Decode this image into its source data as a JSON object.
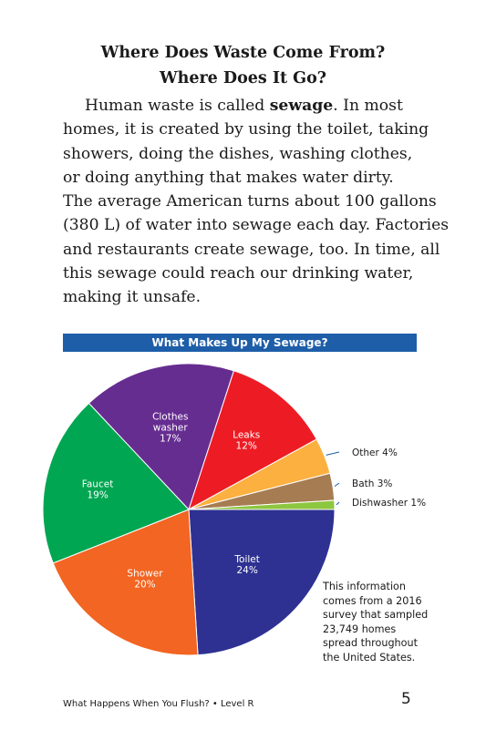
{
  "heading": {
    "line1": "Where Does Waste Come From?",
    "line2": "Where Does It Go?"
  },
  "body": {
    "l1a": "Human waste is called ",
    "l1b": "sewage",
    "l1c": ". In most",
    "l2": "homes, it is created by using the toilet, taking",
    "l3": "showers, doing the dishes, washing clothes,",
    "l4": "or doing anything that makes water dirty.",
    "l5": "The average American turns about 100 gallons",
    "l6": "(380 L) of water into sewage each day. Factories",
    "l7": "and restaurants create sewage, too. In time, all",
    "l8": "this sewage could reach our drinking water,",
    "l9": "making it unsafe."
  },
  "chart_data": {
    "type": "pie",
    "title": "What Makes Up My Sewage?",
    "slices": [
      {
        "label": "Toilet",
        "value": 24,
        "pct_label": "24%",
        "color": "#2e3192"
      },
      {
        "label": "Shower",
        "value": 20,
        "pct_label": "20%",
        "color": "#f26522"
      },
      {
        "label": "Faucet",
        "value": 19,
        "pct_label": "19%",
        "color": "#00a651"
      },
      {
        "label": "Clothes washer",
        "value": 17,
        "pct_label": "17%",
        "color": "#662d91"
      },
      {
        "label": "Leaks",
        "value": 12,
        "pct_label": "12%",
        "color": "#ed1c24"
      },
      {
        "label": "Other",
        "value": 4,
        "pct_label": "4%",
        "color": "#fbb040"
      },
      {
        "label": "Bath",
        "value": 3,
        "pct_label": "3%",
        "color": "#a67c52"
      },
      {
        "label": "Dishwasher",
        "value": 1,
        "pct_label": "1%",
        "color": "#8dc63f"
      }
    ],
    "leader_line_color": "#1e5ea8"
  },
  "note": {
    "l1": "This information",
    "l2": "comes from a 2016",
    "l3": "survey that sampled",
    "l4": "23,749 homes",
    "l5": "spread throughout",
    "l6": "the United States."
  },
  "footer": {
    "left": "What Happens When You Flush? • Level R",
    "page": "5"
  }
}
